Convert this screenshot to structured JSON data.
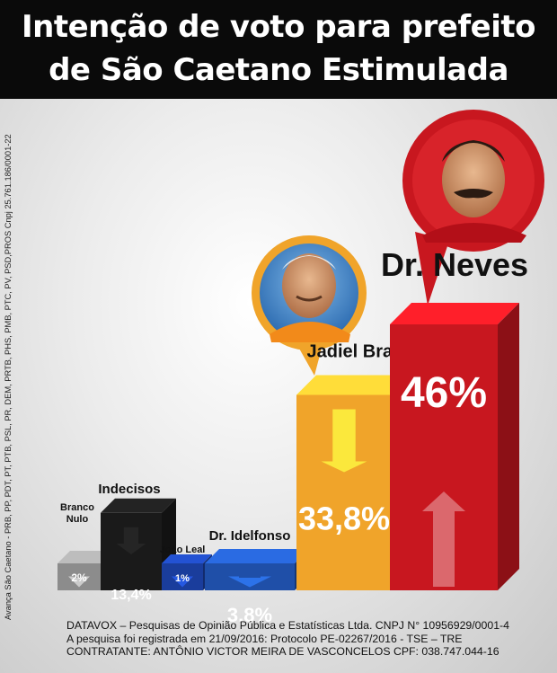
{
  "header": {
    "title_line1": "Intenção de voto para prefeito",
    "title_line2": "de São Caetano Estimulada"
  },
  "side_note": "Avança São Caetano - PRB, PP, PDT, PT, PTB, PSL, PR, DEM, PRTB, PHS, PMB, PTC, PV, PSD,PROS Cnpj 25.761.186/0001-22",
  "chart_data": {
    "type": "bar",
    "categories": [
      "Branco\nNulo",
      "Indecisos",
      "João Leal",
      "Dr. Idelfonso",
      "Jadiel Braga",
      "Dr. Neves"
    ],
    "values": [
      2,
      13.4,
      1,
      3.8,
      33.8,
      46
    ],
    "value_labels": [
      "2%",
      "13,4%",
      "1%",
      "3,8%",
      "33,8%",
      "46%"
    ],
    "colors": [
      "#8c8c8c",
      "#1a1a1a",
      "#1a3d9c",
      "#1f4fa8",
      "#f0a42a",
      "#c8171f"
    ],
    "ylim": [
      0,
      46
    ]
  },
  "footer": {
    "line1": "DATAVOX – Pesquisas de Opinião Pública e Estatísticas Ltda. CNPJ N° 10956929/0001-4",
    "line2": "A pesquisa foi registrada em 21/09/2016: Protocolo PE-02267/2016 - TSE – TRE",
    "line3": "CONTRATANTE: ANTÔNIO VICTOR MEIRA DE VASCONCELOS CPF: 038.747.044-16"
  }
}
